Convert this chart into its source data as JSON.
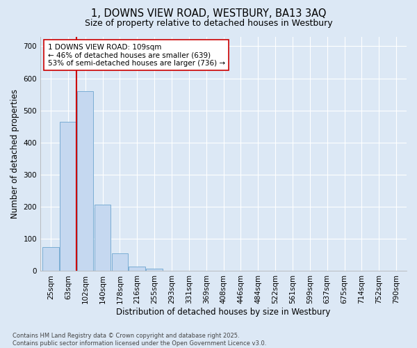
{
  "title": "1, DOWNS VIEW ROAD, WESTBURY, BA13 3AQ",
  "subtitle": "Size of property relative to detached houses in Westbury",
  "xlabel": "Distribution of detached houses by size in Westbury",
  "ylabel": "Number of detached properties",
  "categories": [
    "25sqm",
    "63sqm",
    "102sqm",
    "140sqm",
    "178sqm",
    "216sqm",
    "255sqm",
    "293sqm",
    "331sqm",
    "369sqm",
    "408sqm",
    "446sqm",
    "484sqm",
    "522sqm",
    "561sqm",
    "599sqm",
    "637sqm",
    "675sqm",
    "714sqm",
    "752sqm",
    "790sqm"
  ],
  "values": [
    75,
    465,
    560,
    207,
    55,
    15,
    7,
    0,
    0,
    0,
    0,
    0,
    0,
    0,
    0,
    0,
    0,
    0,
    0,
    0,
    0
  ],
  "bar_color": "#c5d8f0",
  "bar_edge_color": "#7aadd4",
  "background_color": "#dce8f5",
  "plot_bg_color": "#dce8f5",
  "grid_color": "#ffffff",
  "vline_x": 2.0,
  "vline_color": "#cc0000",
  "annotation_text": "1 DOWNS VIEW ROAD: 109sqm\n← 46% of detached houses are smaller (639)\n53% of semi-detached houses are larger (736) →",
  "annotation_box_color": "#ffffff",
  "annotation_box_edge": "#cc0000",
  "ylim": [
    0,
    730
  ],
  "yticks": [
    0,
    100,
    200,
    300,
    400,
    500,
    600,
    700
  ],
  "footnote": "Contains HM Land Registry data © Crown copyright and database right 2025.\nContains public sector information licensed under the Open Government Licence v3.0.",
  "title_fontsize": 10.5,
  "subtitle_fontsize": 9,
  "axis_label_fontsize": 8.5,
  "tick_fontsize": 7.5,
  "footnote_fontsize": 6
}
